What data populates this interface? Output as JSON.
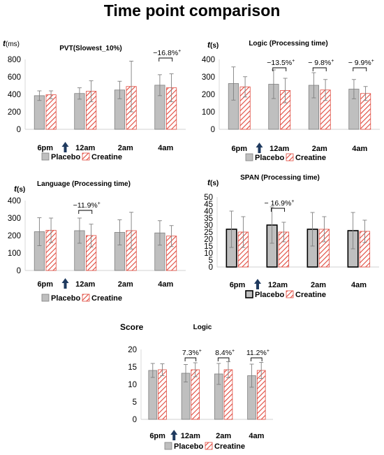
{
  "figure": {
    "title": "Time point comparison",
    "colors": {
      "placebo_fill": "#bfbfbf",
      "placebo_stroke": "#7f7f7f",
      "creatine_stripe": "#e0483c",
      "creatine_bg": "#ffffff",
      "axis": "#d9d9d9",
      "text": "#000000",
      "error_bar": "#7f7f7f",
      "arrow": "#1f3a5f"
    },
    "arrow_icon": "up-arrow-icon"
  },
  "chart_data": [
    {
      "id": "pvt",
      "type": "bar",
      "title": "PVT(Slowest_10%)",
      "ylabel": "t(ms)",
      "ylabel_main": "t",
      "ylabel_unit": "(ms)",
      "categories": [
        "6pm",
        "12am",
        "2am",
        "4am"
      ],
      "ylim": [
        0,
        800
      ],
      "yticks": [
        0,
        200,
        400,
        600,
        800
      ],
      "legend": [
        "Placebo",
        "Creatine"
      ],
      "legend_position": "bottom",
      "series": [
        {
          "name": "Placebo",
          "values": [
            385,
            410,
            450,
            505
          ],
          "errors": [
            55,
            65,
            100,
            120
          ]
        },
        {
          "name": "Creatine",
          "values": [
            395,
            435,
            490,
            475
          ],
          "errors": [
            45,
            120,
            290,
            160
          ]
        }
      ],
      "annotations": [
        {
          "category": "4am",
          "text": "−16.8%",
          "mark": "+"
        }
      ],
      "intervention_between": [
        "6pm",
        "12am"
      ]
    },
    {
      "id": "logic-time",
      "type": "bar",
      "title": "Logic (Processing time)",
      "ylabel": "t(s)",
      "ylabel_main": "t",
      "ylabel_unit": "(s)",
      "categories": [
        "6pm",
        "12am",
        "2am",
        "4am"
      ],
      "ylim": [
        0,
        400
      ],
      "yticks": [
        0,
        100,
        200,
        300,
        400
      ],
      "legend": [
        "Placebo",
        "Creatine"
      ],
      "legend_position": "bottom",
      "series": [
        {
          "name": "Placebo",
          "values": [
            262,
            258,
            252,
            230
          ],
          "errors": [
            95,
            82,
            72,
            55
          ]
        },
        {
          "name": "Creatine",
          "values": [
            243,
            222,
            225,
            205
          ],
          "errors": [
            58,
            70,
            60,
            40
          ]
        }
      ],
      "annotations": [
        {
          "category": "12am",
          "text": "−13.5%",
          "mark": "+"
        },
        {
          "category": "2am",
          "text": "− 9.8%",
          "mark": "+"
        },
        {
          "category": "4am",
          "text": "− 9.9%",
          "mark": "+"
        }
      ],
      "intervention_between": [
        "6pm",
        "12am"
      ]
    },
    {
      "id": "language-time",
      "type": "bar",
      "title": "Language (Processing time)",
      "ylabel": "t(s)",
      "ylabel_main": "t",
      "ylabel_unit": "(s)",
      "categories": [
        "6pm",
        "12am",
        "2am",
        "4am"
      ],
      "ylim": [
        0,
        400
      ],
      "yticks": [
        0,
        100,
        200,
        300,
        400
      ],
      "legend": [
        "Placebo",
        "Creatine"
      ],
      "legend_position": "bottom",
      "series": [
        {
          "name": "Placebo",
          "values": [
            222,
            228,
            218,
            215
          ],
          "errors": [
            80,
            72,
            72,
            70
          ]
        },
        {
          "name": "Creatine",
          "values": [
            230,
            200,
            228,
            197
          ],
          "errors": [
            70,
            65,
            105,
            60
          ]
        }
      ],
      "annotations": [
        {
          "category": "12am",
          "text": "−11.9%",
          "mark": "+"
        }
      ],
      "intervention_between": [
        "6pm",
        "12am"
      ]
    },
    {
      "id": "span-time",
      "type": "bar",
      "title": "SPAN (Processing time)",
      "ylabel": "t(s)",
      "ylabel_main": "t",
      "ylabel_unit": "(s)",
      "categories": [
        "6pm",
        "12am",
        "2am",
        "4am"
      ],
      "ylim": [
        0,
        50
      ],
      "yticks": [
        0,
        5,
        10,
        15,
        20,
        25,
        30,
        35,
        40,
        45,
        50
      ],
      "legend": [
        "Placebo",
        "Creatine"
      ],
      "legend_position": "bottom",
      "series": [
        {
          "name": "Placebo",
          "values": [
            27,
            30,
            27,
            26
          ],
          "errors": [
            13,
            13,
            12,
            13
          ]
        },
        {
          "name": "Creatine",
          "values": [
            25,
            25,
            27,
            25.5
          ],
          "errors": [
            11,
            7,
            9,
            8
          ]
        }
      ],
      "annotations": [
        {
          "category": "12am",
          "text": "− 16.9%",
          "mark": "+"
        }
      ],
      "intervention_between": [
        "6pm",
        "12am"
      ]
    },
    {
      "id": "logic-score",
      "type": "bar",
      "title": "Logic",
      "ylabel": "Score",
      "ylabel_main": "Score",
      "ylabel_unit": "",
      "categories": [
        "6pm",
        "12am",
        "2am",
        "4am"
      ],
      "ylim": [
        0,
        20
      ],
      "yticks": [
        0,
        5,
        10,
        15,
        20
      ],
      "legend": [
        "Placebo",
        "Creatine"
      ],
      "legend_position": "bottom",
      "series": [
        {
          "name": "Placebo",
          "values": [
            14.0,
            13.2,
            13.0,
            12.5
          ],
          "errors": [
            2.0,
            2.5,
            3.0,
            3.3
          ]
        },
        {
          "name": "Creatine",
          "values": [
            14.2,
            14.2,
            14.2,
            14.0
          ],
          "errors": [
            1.7,
            2.0,
            2.3,
            2.3
          ]
        }
      ],
      "annotations": [
        {
          "category": "12am",
          "text": "7.3%",
          "mark": "+"
        },
        {
          "category": "2am",
          "text": "8.4%",
          "mark": "+"
        },
        {
          "category": "4am",
          "text": "11.2%",
          "mark": "+"
        }
      ],
      "intervention_between": [
        "6pm",
        "12am"
      ]
    }
  ]
}
